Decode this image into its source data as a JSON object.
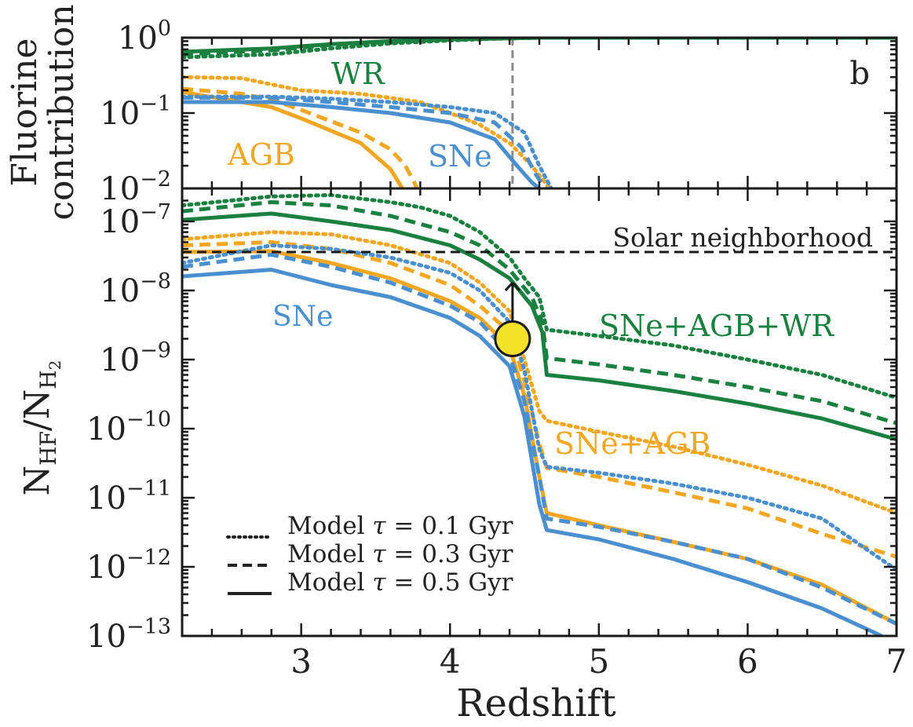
{
  "chart_data": [
    {
      "type": "line",
      "panel": "b",
      "ylabel_line1": "Fluorine",
      "ylabel_line2": "contribution",
      "yscale": "log",
      "ylim": [
        0.01,
        1
      ],
      "xlim": [
        2.2,
        7
      ],
      "yticks": [
        {
          "value": 1,
          "base": "10",
          "exp": "0"
        },
        {
          "value": 0.1,
          "base": "10",
          "exp": "−1"
        },
        {
          "value": 0.01,
          "base": "10",
          "exp": "−2"
        }
      ],
      "vline_x": 4.42,
      "colors": {
        "WR": "#1a8040",
        "AGB": "#f2a622",
        "SNe": "#4a8fcf",
        "vline": "#8a8a8a"
      },
      "curve_labels": [
        {
          "text": "WR",
          "series": "WR"
        },
        {
          "text": "AGB",
          "series": "AGB"
        },
        {
          "text": "SNe",
          "series": "SNe"
        }
      ],
      "series": [
        {
          "source": "WR",
          "tau": 0.1,
          "x": [
            2.2,
            2.8,
            3.2,
            3.6,
            4.0,
            4.3,
            4.6,
            7.0
          ],
          "y": [
            0.55,
            0.6,
            0.72,
            0.84,
            0.92,
            0.97,
            1.0,
            1.0
          ]
        },
        {
          "source": "WR",
          "tau": 0.3,
          "x": [
            2.2,
            2.8,
            3.2,
            3.6,
            4.0,
            4.4,
            4.6,
            7.0
          ],
          "y": [
            0.6,
            0.68,
            0.8,
            0.88,
            0.94,
            0.98,
            1.0,
            1.0
          ]
        },
        {
          "source": "WR",
          "tau": 0.5,
          "x": [
            2.2,
            2.8,
            3.2,
            3.6,
            4.0,
            4.4,
            4.6,
            7.0
          ],
          "y": [
            0.65,
            0.72,
            0.82,
            0.9,
            0.95,
            0.98,
            1.0,
            1.0
          ]
        },
        {
          "source": "AGB",
          "tau": 0.1,
          "x": [
            2.2,
            2.6,
            2.8,
            3.0,
            3.4,
            3.8,
            4.0,
            4.2,
            4.4,
            4.55,
            4.67
          ],
          "y": [
            0.3,
            0.29,
            0.24,
            0.2,
            0.18,
            0.14,
            0.1,
            0.07,
            0.04,
            0.02,
            0.01
          ]
        },
        {
          "source": "AGB",
          "tau": 0.3,
          "x": [
            2.2,
            2.6,
            2.8,
            3.0,
            3.4,
            3.6,
            3.7,
            3.78
          ],
          "y": [
            0.21,
            0.18,
            0.15,
            0.11,
            0.055,
            0.033,
            0.02,
            0.01
          ]
        },
        {
          "source": "AGB",
          "tau": 0.5,
          "x": [
            2.2,
            2.6,
            2.8,
            3.0,
            3.4,
            3.6,
            3.68
          ],
          "y": [
            0.19,
            0.14,
            0.12,
            0.085,
            0.04,
            0.018,
            0.01
          ]
        },
        {
          "source": "SNe",
          "tau": 0.1,
          "x": [
            2.2,
            2.8,
            3.2,
            3.6,
            4.0,
            4.3,
            4.5,
            4.6,
            4.68
          ],
          "y": [
            0.165,
            0.165,
            0.155,
            0.14,
            0.12,
            0.1,
            0.055,
            0.02,
            0.01
          ]
        },
        {
          "source": "SNe",
          "tau": 0.3,
          "x": [
            2.2,
            2.8,
            3.2,
            3.6,
            4.0,
            4.3,
            4.48,
            4.58,
            4.64
          ],
          "y": [
            0.16,
            0.16,
            0.14,
            0.12,
            0.1,
            0.075,
            0.035,
            0.015,
            0.01
          ]
        },
        {
          "source": "SNe",
          "tau": 0.5,
          "x": [
            2.2,
            2.8,
            3.2,
            3.6,
            4.0,
            4.3,
            4.45,
            4.55,
            4.6
          ],
          "y": [
            0.14,
            0.14,
            0.12,
            0.1,
            0.075,
            0.045,
            0.02,
            0.012,
            0.01
          ]
        }
      ]
    },
    {
      "type": "line",
      "ylabel": "N_HF/N_H2",
      "ylabel_parts": {
        "n1": "N",
        "sub1": "HF",
        "slash": "/",
        "n2": "N",
        "sub2": "H",
        "subsub2": "2"
      },
      "xlabel": "Redshift",
      "yscale": "log",
      "ylim": [
        1e-13,
        3e-07
      ],
      "xlim": [
        2.2,
        7
      ],
      "xticks": [
        {
          "value": 3,
          "label": "3"
        },
        {
          "value": 4,
          "label": "4"
        },
        {
          "value": 5,
          "label": "5"
        },
        {
          "value": 6,
          "label": "6"
        },
        {
          "value": 7,
          "label": "7"
        }
      ],
      "yticks": [
        {
          "value": 1e-07,
          "base": "10",
          "exp": "−7"
        },
        {
          "value": 1e-08,
          "base": "10",
          "exp": "−8"
        },
        {
          "value": 1e-09,
          "base": "10",
          "exp": "−9"
        },
        {
          "value": 1e-10,
          "base": "10",
          "exp": "−10"
        },
        {
          "value": 1e-11,
          "base": "10",
          "exp": "−11"
        },
        {
          "value": 1e-12,
          "base": "10",
          "exp": "−12"
        },
        {
          "value": 1e-13,
          "base": "10",
          "exp": "−13"
        }
      ],
      "reference_line": {
        "label": "Solar neighborhood",
        "y": 3.6e-08,
        "color": "#1a1a1a"
      },
      "observation": {
        "x": 4.42,
        "y": 2e-09,
        "limit_to": 1.3e-08,
        "fill": "#f5e02a",
        "edge": "#1a1a1a"
      },
      "colors": {
        "SNe+AGB+WR": "#1a8040",
        "SNe+AGB": "#f2a622",
        "SNe": "#4a8fcf"
      },
      "curve_labels": [
        {
          "text": "SNe",
          "series": "SNe"
        },
        {
          "text": "SNe+AGB+WR",
          "series": "SNe+AGB+WR"
        },
        {
          "text": "SNe+AGB",
          "series": "SNe+AGB"
        }
      ],
      "legend": {
        "position": "bottom-left",
        "entries": [
          {
            "style": "dotted",
            "prefix": "Model ",
            "symbol": "τ",
            "suffix": " = 0.1 Gyr"
          },
          {
            "style": "dashed",
            "prefix": "Model ",
            "symbol": "τ",
            "suffix": " = 0.3 Gyr"
          },
          {
            "style": "solid",
            "prefix": "Model ",
            "symbol": "τ",
            "suffix": " = 0.5 Gyr"
          }
        ]
      },
      "series": [
        {
          "source": "SNe+AGB+WR",
          "tau": 0.1,
          "x": [
            2.2,
            2.8,
            3.2,
            3.6,
            3.8,
            4.0,
            4.2,
            4.4,
            4.5,
            4.6,
            4.65,
            5.0,
            5.5,
            6.0,
            6.5,
            7.0
          ],
          "y": [
            1.7e-07,
            2.3e-07,
            2.4e-07,
            1.9e-07,
            1.6e-07,
            1.2e-07,
            7e-08,
            3e-08,
            1.5e-08,
            8e-09,
            2.7e-09,
            2.2e-09,
            1.6e-09,
            1e-09,
            6e-10,
            2.8e-10
          ]
        },
        {
          "source": "SNe+AGB+WR",
          "tau": 0.3,
          "x": [
            2.2,
            2.8,
            3.2,
            3.6,
            4.0,
            4.2,
            4.4,
            4.55,
            4.62,
            4.65,
            5.0,
            5.5,
            6.0,
            6.5,
            7.0
          ],
          "y": [
            1.4e-07,
            1.9e-07,
            1.7e-07,
            1.2e-07,
            7e-08,
            4.5e-08,
            2e-08,
            8e-09,
            3.5e-09,
            1.05e-09,
            8.5e-10,
            6e-10,
            4e-10,
            2.5e-10,
            1.2e-10
          ]
        },
        {
          "source": "SNe+AGB+WR",
          "tau": 0.5,
          "x": [
            2.2,
            2.8,
            3.2,
            3.6,
            4.0,
            4.2,
            4.4,
            4.55,
            4.62,
            4.65,
            5.0,
            5.5,
            6.0,
            6.5,
            7.0
          ],
          "y": [
            1.05e-07,
            1.3e-07,
            1e-07,
            7.5e-08,
            4.5e-08,
            2.8e-08,
            1.5e-08,
            6e-09,
            2.5e-09,
            6e-10,
            5e-10,
            3.5e-10,
            2.3e-10,
            1.4e-10,
            7e-11
          ]
        },
        {
          "source": "SNe+AGB",
          "tau": 0.1,
          "x": [
            2.2,
            2.8,
            3.2,
            3.6,
            4.0,
            4.2,
            4.4,
            4.5,
            4.6,
            4.65,
            5.0,
            5.5,
            6.0,
            6.5,
            7.0
          ],
          "y": [
            5.5e-08,
            7e-08,
            6.5e-08,
            4.5e-08,
            2.5e-08,
            1.3e-08,
            5e-09,
            1e-09,
            1.8e-10,
            1.3e-10,
            9e-11,
            5.5e-11,
            3e-11,
            1.5e-11,
            6e-12
          ]
        },
        {
          "source": "SNe+AGB",
          "tau": 0.3,
          "x": [
            2.2,
            2.8,
            3.2,
            3.6,
            4.0,
            4.2,
            4.4,
            4.5,
            4.6,
            4.65,
            5.0,
            5.5,
            6.0,
            6.5,
            7.0
          ],
          "y": [
            4.5e-08,
            5e-08,
            4e-08,
            2.5e-08,
            1.2e-08,
            6e-09,
            2.5e-09,
            5e-10,
            6e-11,
            2.7e-11,
            2e-11,
            1.2e-11,
            7e-12,
            3e-12,
            1.4e-12
          ]
        },
        {
          "source": "SNe+AGB",
          "tau": 0.5,
          "x": [
            2.2,
            2.8,
            3.2,
            3.6,
            4.0,
            4.2,
            4.4,
            4.5,
            4.6,
            4.65,
            5.0,
            5.5,
            6.0,
            6.5,
            7.0
          ],
          "y": [
            3.6e-08,
            3.7e-08,
            2.5e-08,
            1.5e-08,
            7e-09,
            4e-09,
            1.5e-09,
            3e-10,
            2e-11,
            6e-12,
            4e-12,
            2.3e-12,
            1.3e-12,
            5.5e-13,
            1.5e-13
          ]
        },
        {
          "source": "SNe",
          "tau": 0.1,
          "x": [
            2.2,
            2.8,
            3.2,
            3.6,
            4.0,
            4.2,
            4.4,
            4.5,
            4.6,
            4.65,
            5.0,
            5.5,
            6.0,
            6.5,
            7.0
          ],
          "y": [
            2.5e-08,
            4.5e-08,
            4e-08,
            3e-08,
            1.8e-08,
            1e-08,
            3.5e-09,
            7e-10,
            5e-11,
            2.8e-11,
            2.3e-11,
            1.6e-11,
            1e-11,
            5e-12,
            9e-13
          ]
        },
        {
          "source": "SNe",
          "tau": 0.3,
          "x": [
            2.2,
            2.8,
            3.2,
            3.6,
            4.0,
            4.2,
            4.4,
            4.5,
            4.6,
            4.65,
            5.0,
            5.5,
            6.0,
            6.5,
            7.0
          ],
          "y": [
            2.2e-08,
            3.3e-08,
            2.2e-08,
            1.3e-08,
            6e-09,
            3.5e-09,
            1.2e-09,
            2.5e-10,
            2e-11,
            5e-12,
            3.8e-12,
            2.3e-12,
            1.3e-12,
            5e-13,
            1.5e-13
          ]
        },
        {
          "source": "SNe",
          "tau": 0.5,
          "x": [
            2.2,
            2.8,
            3.2,
            3.6,
            4.0,
            4.2,
            4.4,
            4.5,
            4.6,
            4.65,
            5.0,
            5.5,
            6.0,
            6.5,
            6.9
          ],
          "y": [
            1.6e-08,
            2e-08,
            1.2e-08,
            8e-09,
            4e-09,
            2.2e-09,
            8e-10,
            1.5e-10,
            8e-12,
            3.4e-12,
            2.5e-12,
            1.3e-12,
            6e-13,
            2.5e-13,
            1e-13
          ]
        }
      ]
    }
  ]
}
